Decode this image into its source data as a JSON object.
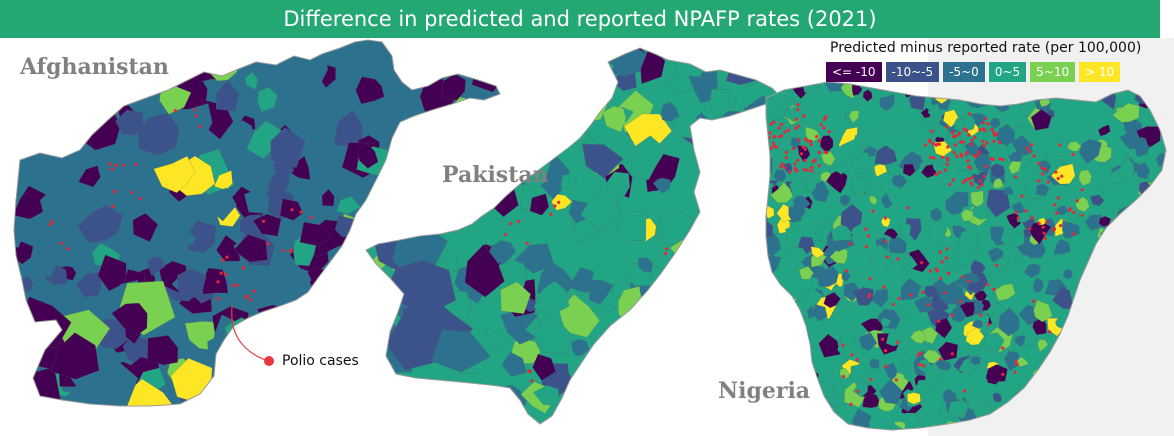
{
  "title": "Difference in predicted and reported NPAFP rates (2021)",
  "countries": [
    {
      "key": "afghanistan",
      "label": "Afghanistan"
    },
    {
      "key": "pakistan",
      "label": "Pakistan"
    },
    {
      "key": "nigeria",
      "label": "Nigeria"
    }
  ],
  "legend": {
    "title": "Predicted minus reported rate (per 100,000)",
    "items": [
      {
        "label": "<= -10",
        "color": "#440154",
        "text_color": "#ffffff"
      },
      {
        "label": "-10~-5",
        "color": "#3b528b",
        "text_color": "#ffffff"
      },
      {
        "label": "-5~0",
        "color": "#2c728e",
        "text_color": "#ffffff"
      },
      {
        "label": "0~5",
        "color": "#21a585",
        "text_color": "#ffffff"
      },
      {
        "label": "5~10",
        "color": "#7ad151",
        "text_color": "#ffffff"
      },
      {
        "label": "> 10",
        "color": "#fde725",
        "text_color": "#ffffff"
      }
    ]
  },
  "annotation": {
    "label": "Polio cases",
    "marker_color": "#e8383d"
  },
  "colors": {
    "title_bar": "#24a873",
    "border": "#9a9a9a",
    "case_dot": "#e8263a",
    "right_shade": "#f1f1f1"
  }
}
